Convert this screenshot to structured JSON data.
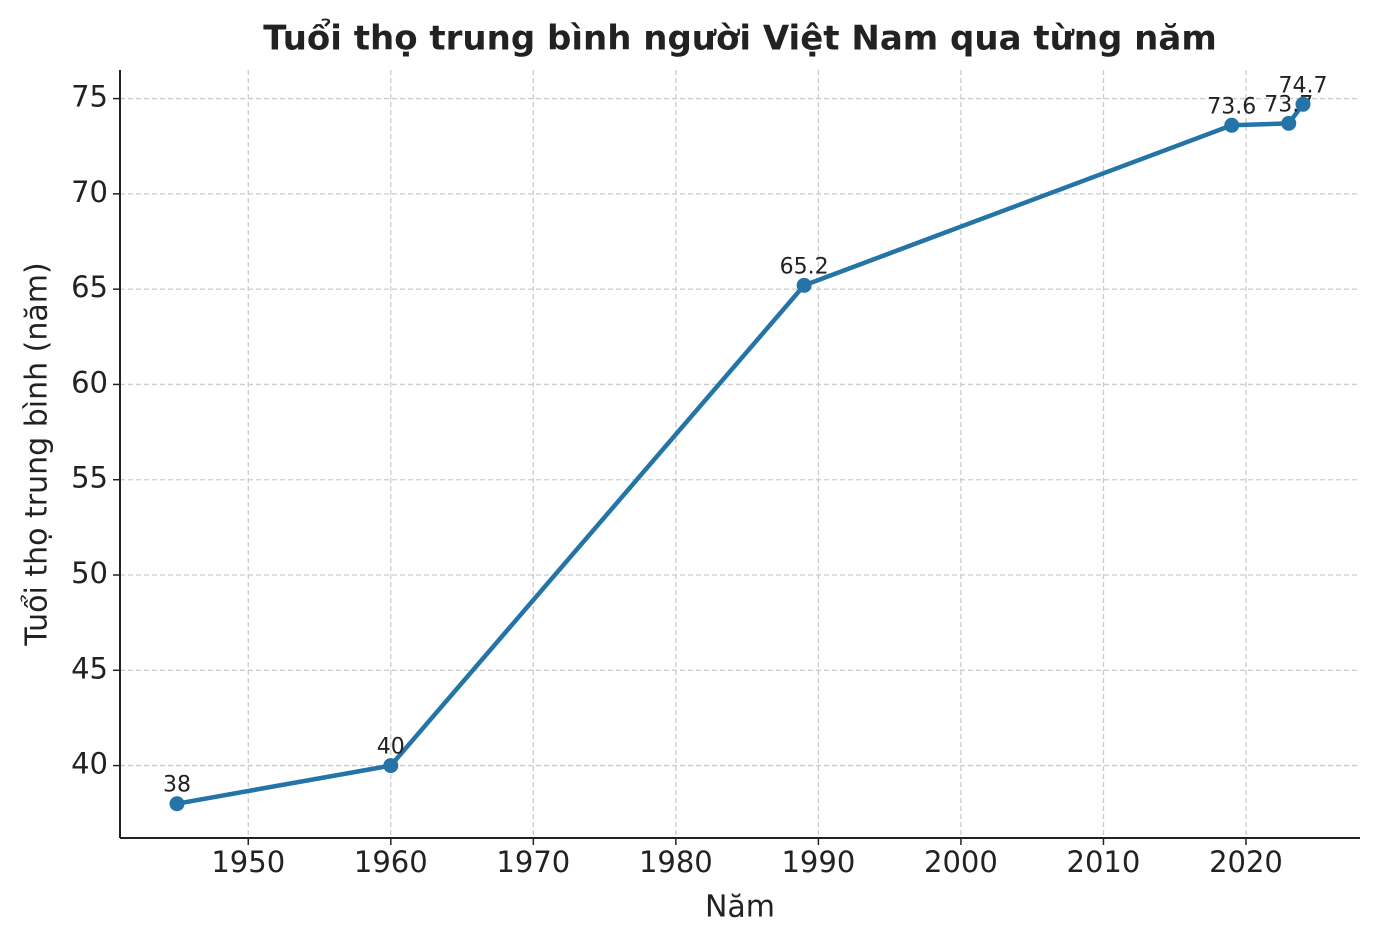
{
  "chart_data": {
    "type": "line",
    "title": "Tuổi thọ trung bình người Việt Nam qua từng năm",
    "x_label": "Năm",
    "y_label": "Tuổi thọ trung bình (năm)",
    "x": [
      1945,
      1960,
      1989,
      2019,
      2023,
      2024
    ],
    "series": [
      {
        "name": "Tuổi thọ trung bình",
        "color": "#2474a8",
        "values": [
          38,
          40,
          65.2,
          73.6,
          73.7,
          74.7
        ]
      }
    ],
    "xlim": [
      1941,
      2028
    ],
    "xticks": [
      1950,
      1960,
      1970,
      1980,
      1990,
      2000,
      2010,
      2020
    ],
    "ylim": [
      36.2,
      76.5
    ],
    "yticks": [
      40,
      45,
      50,
      55,
      60,
      65,
      70,
      75
    ],
    "grid": true,
    "data_labels": true
  }
}
